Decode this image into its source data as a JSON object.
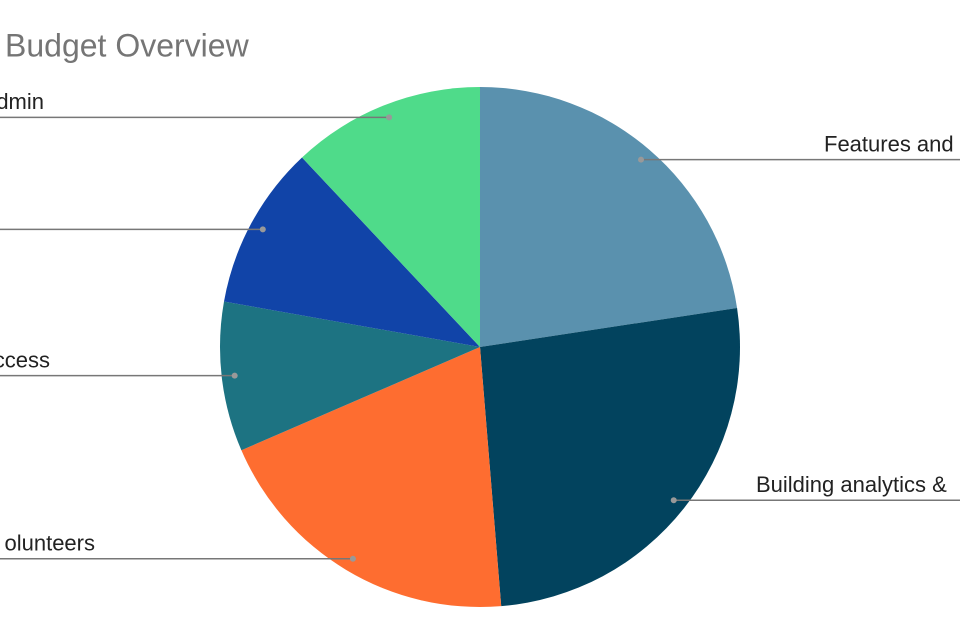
{
  "chart_data": {
    "type": "pie",
    "title": "Budget Overview",
    "categories": [
      "Features and",
      "Building analytics &",
      "olunteers",
      "ccess",
      null,
      "dmin"
    ],
    "values": [
      22.6,
      26.1,
      19.8,
      9.3,
      10.2,
      12.0
    ],
    "colors": [
      "#5a91ae",
      "#02435e",
      "#fe6d30",
      "#1d7382",
      "#1144a8",
      "#4fdb8a"
    ]
  }
}
